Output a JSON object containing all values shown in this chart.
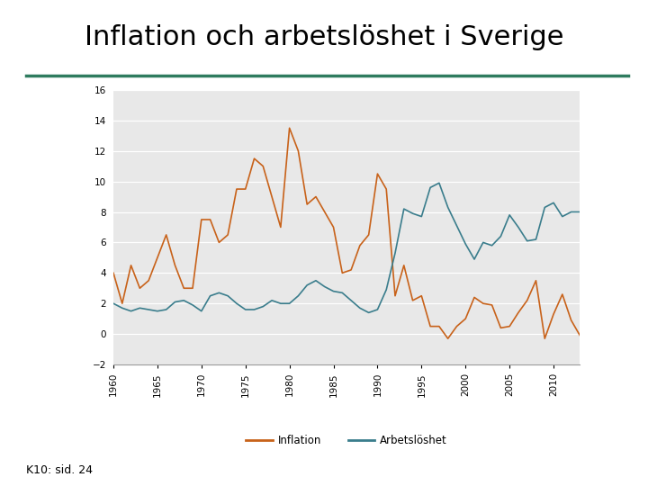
{
  "title": "Inflation och arbetslöshet i Sverige",
  "title_fontsize": 22,
  "outer_bg": "#ffffff",
  "plot_bg_color": "#e8e8e8",
  "line_color_inflation": "#c8621a",
  "line_color_unemployment": "#3a7d8c",
  "ylim": [
    -2,
    16
  ],
  "yticks": [
    -2,
    0,
    2,
    4,
    6,
    8,
    10,
    12,
    14,
    16
  ],
  "legend_labels": [
    "Inflation",
    "Arbetslöshet"
  ],
  "footer_text": "K10: sid. 24",
  "separator_color": "#2e7b5e",
  "years_inflation": [
    1960,
    1961,
    1962,
    1963,
    1964,
    1965,
    1966,
    1967,
    1968,
    1969,
    1970,
    1971,
    1972,
    1973,
    1974,
    1975,
    1976,
    1977,
    1978,
    1979,
    1980,
    1981,
    1982,
    1983,
    1984,
    1985,
    1986,
    1987,
    1988,
    1989,
    1990,
    1991,
    1992,
    1993,
    1994,
    1995,
    1996,
    1997,
    1998,
    1999,
    2000,
    2001,
    2002,
    2003,
    2004,
    2005,
    2006,
    2007,
    2008,
    2009,
    2010,
    2011,
    2012,
    2013
  ],
  "inflation": [
    4.0,
    2.0,
    4.5,
    3.0,
    3.5,
    5.0,
    6.5,
    4.5,
    3.0,
    3.0,
    7.5,
    7.5,
    6.0,
    6.5,
    9.5,
    9.5,
    11.5,
    11.0,
    9.0,
    7.0,
    13.5,
    12.0,
    8.5,
    9.0,
    8.0,
    7.0,
    4.0,
    4.2,
    5.8,
    6.5,
    10.5,
    9.5,
    2.5,
    4.5,
    2.2,
    2.5,
    0.5,
    0.5,
    -0.3,
    0.5,
    1.0,
    2.4,
    2.0,
    1.9,
    0.4,
    0.5,
    1.4,
    2.2,
    3.5,
    -0.3,
    1.3,
    2.6,
    0.9,
    -0.1
  ],
  "years_unemployment": [
    1960,
    1961,
    1962,
    1963,
    1964,
    1965,
    1966,
    1967,
    1968,
    1969,
    1970,
    1971,
    1972,
    1973,
    1974,
    1975,
    1976,
    1977,
    1978,
    1979,
    1980,
    1981,
    1982,
    1983,
    1984,
    1985,
    1986,
    1987,
    1988,
    1989,
    1990,
    1991,
    1992,
    1993,
    1994,
    1995,
    1996,
    1997,
    1998,
    1999,
    2000,
    2001,
    2002,
    2003,
    2004,
    2005,
    2006,
    2007,
    2008,
    2009,
    2010,
    2011,
    2012,
    2013
  ],
  "unemployment": [
    2.0,
    1.7,
    1.5,
    1.7,
    1.6,
    1.5,
    1.6,
    2.1,
    2.2,
    1.9,
    1.5,
    2.5,
    2.7,
    2.5,
    2.0,
    1.6,
    1.6,
    1.8,
    2.2,
    2.0,
    2.0,
    2.5,
    3.2,
    3.5,
    3.1,
    2.8,
    2.7,
    2.2,
    1.7,
    1.4,
    1.6,
    2.9,
    5.3,
    8.2,
    7.9,
    7.7,
    9.6,
    9.9,
    8.3,
    7.1,
    5.9,
    4.9,
    6.0,
    5.8,
    6.4,
    7.8,
    7.0,
    6.1,
    6.2,
    8.3,
    8.6,
    7.7,
    8.0,
    8.0
  ]
}
